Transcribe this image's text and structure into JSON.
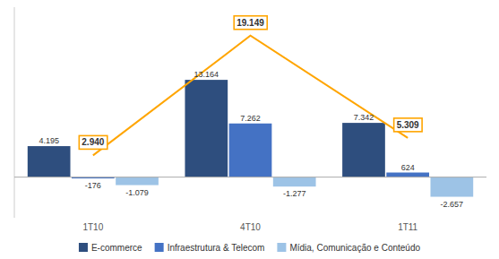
{
  "chart_data": {
    "type": "bar",
    "categories": [
      "1T10",
      "4T10",
      "1T11"
    ],
    "series": [
      {
        "name": "E-commerce",
        "color": "#2E4E7E",
        "values": [
          4195,
          13164,
          7342
        ],
        "value_labels": [
          "4.195",
          "13.164",
          "7.342"
        ]
      },
      {
        "name": "Infraestrutura & Telecom",
        "color": "#4472C4",
        "values": [
          -176,
          7262,
          624
        ],
        "value_labels": [
          "-176",
          "7.262",
          "624"
        ]
      },
      {
        "name": "Mídia, Comunicação e Conteúdo",
        "color": "#9DC3E6",
        "values": [
          -1079,
          -1277,
          -2657
        ],
        "value_labels": [
          "-1.079",
          "-1.277",
          "-2.657"
        ]
      },
      {
        "type": "line",
        "color": "#FFA500",
        "values": [
          2940,
          19149,
          5309
        ],
        "value_labels": [
          "2.940",
          "19.149",
          "5.309"
        ]
      }
    ],
    "ylim": [
      -5500,
      23000
    ],
    "data_labels": true,
    "tick_labels": "x",
    "legend": "bottom",
    "grid": false
  }
}
